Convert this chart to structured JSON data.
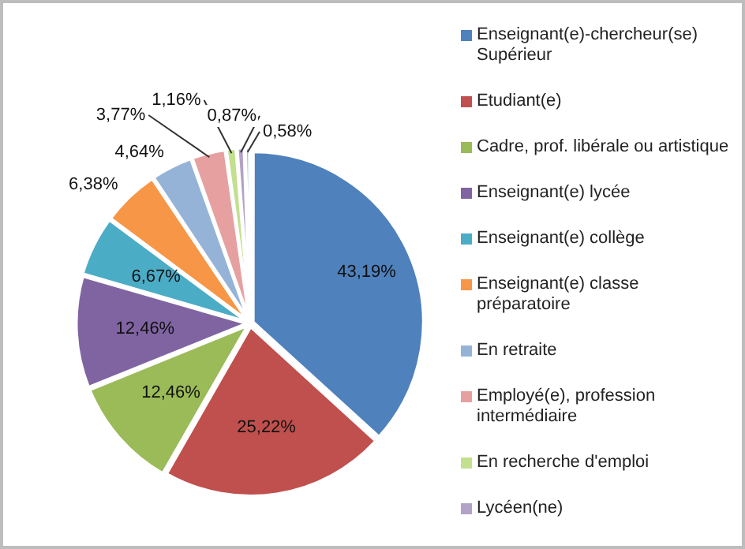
{
  "chart_data": {
    "type": "pie",
    "categories": [
      "Enseignant(e)-chercheur(se) Supérieur",
      "Etudiant(e)",
      "Cadre, prof. libérale ou artistique",
      "Enseignant(e) lycée",
      "Enseignant(e) collège",
      "Enseignant(e) classe préparatoire",
      "En retraite",
      "Employé(e), profession intermédiaire",
      "En recherche d'emploi",
      "Lycéen(ne)",
      null
    ],
    "values": [
      43.19,
      25.22,
      12.46,
      12.46,
      6.67,
      6.38,
      4.64,
      3.77,
      1.16,
      0.87,
      0.58
    ],
    "colors": [
      "#4f81bd",
      "#c0504d",
      "#9bbb59",
      "#8064a2",
      "#4bacc6",
      "#f79646",
      "#95b3d7",
      "#e6a0a0",
      "#c3e08f",
      "#b3a2c7",
      "#93cddd"
    ],
    "value_labels": [
      "43,19%",
      "25,22%",
      "12,46%",
      "12,46%",
      "6,67%",
      "6,38%",
      "4,64%",
      "3,77%",
      "1,16%",
      "0,87%",
      "0,58%"
    ],
    "legend": "right"
  }
}
